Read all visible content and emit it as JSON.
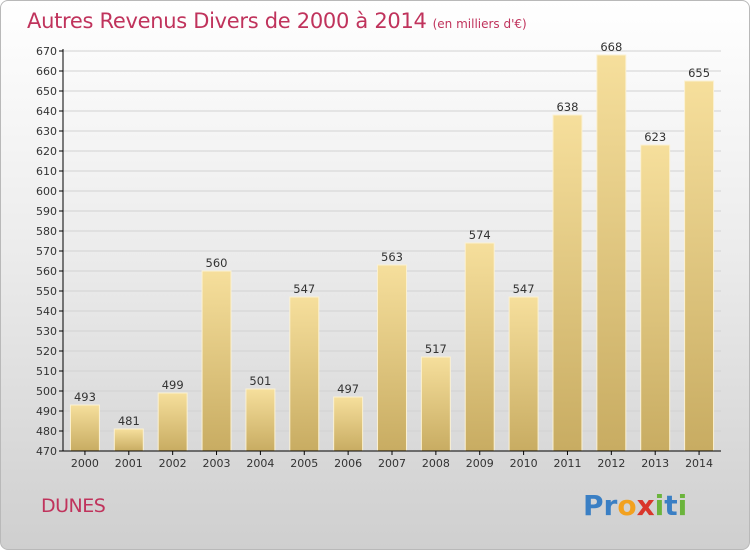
{
  "header": {
    "title": "Autres Revenus Divers de 2000 à 2014",
    "unit": "(en milliers d'€)"
  },
  "footer": {
    "city": "DUNES",
    "logo_letters": [
      {
        "char": "P",
        "color": "#3a7fc4"
      },
      {
        "char": "r",
        "color": "#3a7fc4"
      },
      {
        "char": "o",
        "color": "#f2a11f"
      },
      {
        "char": "x",
        "color": "#d9362b"
      },
      {
        "char": "i",
        "color": "#6bb43c"
      },
      {
        "char": "t",
        "color": "#3a7fc4"
      },
      {
        "char": "i",
        "color": "#6bb43c"
      }
    ]
  },
  "chart_data": {
    "type": "bar",
    "title": "Autres Revenus Divers de 2000 à 2014",
    "categories": [
      "2000",
      "2001",
      "2002",
      "2003",
      "2004",
      "2005",
      "2006",
      "2007",
      "2008",
      "2009",
      "2010",
      "2011",
      "2012",
      "2013",
      "2014"
    ],
    "values": [
      493,
      481,
      499,
      560,
      501,
      547,
      497,
      563,
      517,
      574,
      547,
      638,
      668,
      623,
      655
    ],
    "ylim": [
      470,
      670
    ],
    "ytick_step": 10,
    "grid": true,
    "bar_color_top": "#f6df9c",
    "bar_color_bottom": "#c8ac62",
    "axis_color": "#000000"
  }
}
